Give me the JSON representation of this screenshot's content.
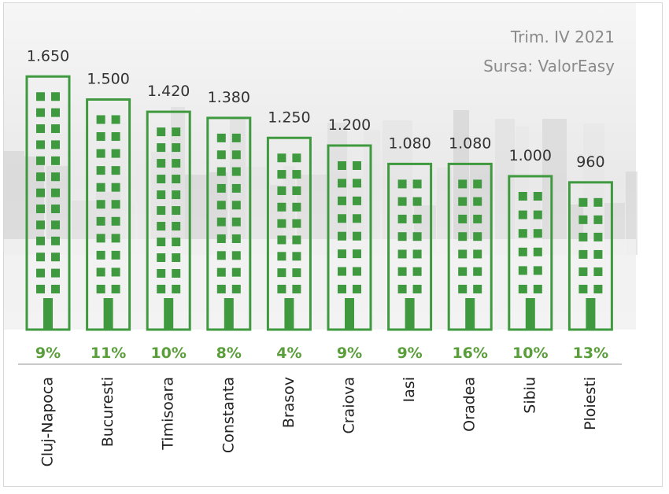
{
  "header": {
    "period": "Trim. IV 2021",
    "source": "Sursa: ValorEasy"
  },
  "colors": {
    "building_green": "#3f9a3f",
    "growth_green": "#5a9e3c",
    "value_text": "#333333",
    "background_city": "#e6e6e6"
  },
  "chart_data": {
    "type": "bar",
    "title": "",
    "xlabel": "",
    "ylabel": "",
    "categories": [
      "Cluj-Napoca",
      "Bucuresti",
      "Timisoara",
      "Constanta",
      "Brasov",
      "Craiova",
      "Iasi",
      "Oradea",
      "Sibiu",
      "Ploiesti"
    ],
    "values": [
      1650,
      1500,
      1420,
      1380,
      1250,
      1200,
      1080,
      1080,
      1000,
      960
    ],
    "value_labels": [
      "1.650",
      "1.500",
      "1.420",
      "1.380",
      "1.250",
      "1.200",
      "1.080",
      "1.080",
      "1.000",
      "960"
    ],
    "growth_labels": [
      "9%",
      "11%",
      "10%",
      "8%",
      "4%",
      "9%",
      "9%",
      "16%",
      "10%",
      "13%"
    ],
    "legend": "none",
    "grid": false
  }
}
